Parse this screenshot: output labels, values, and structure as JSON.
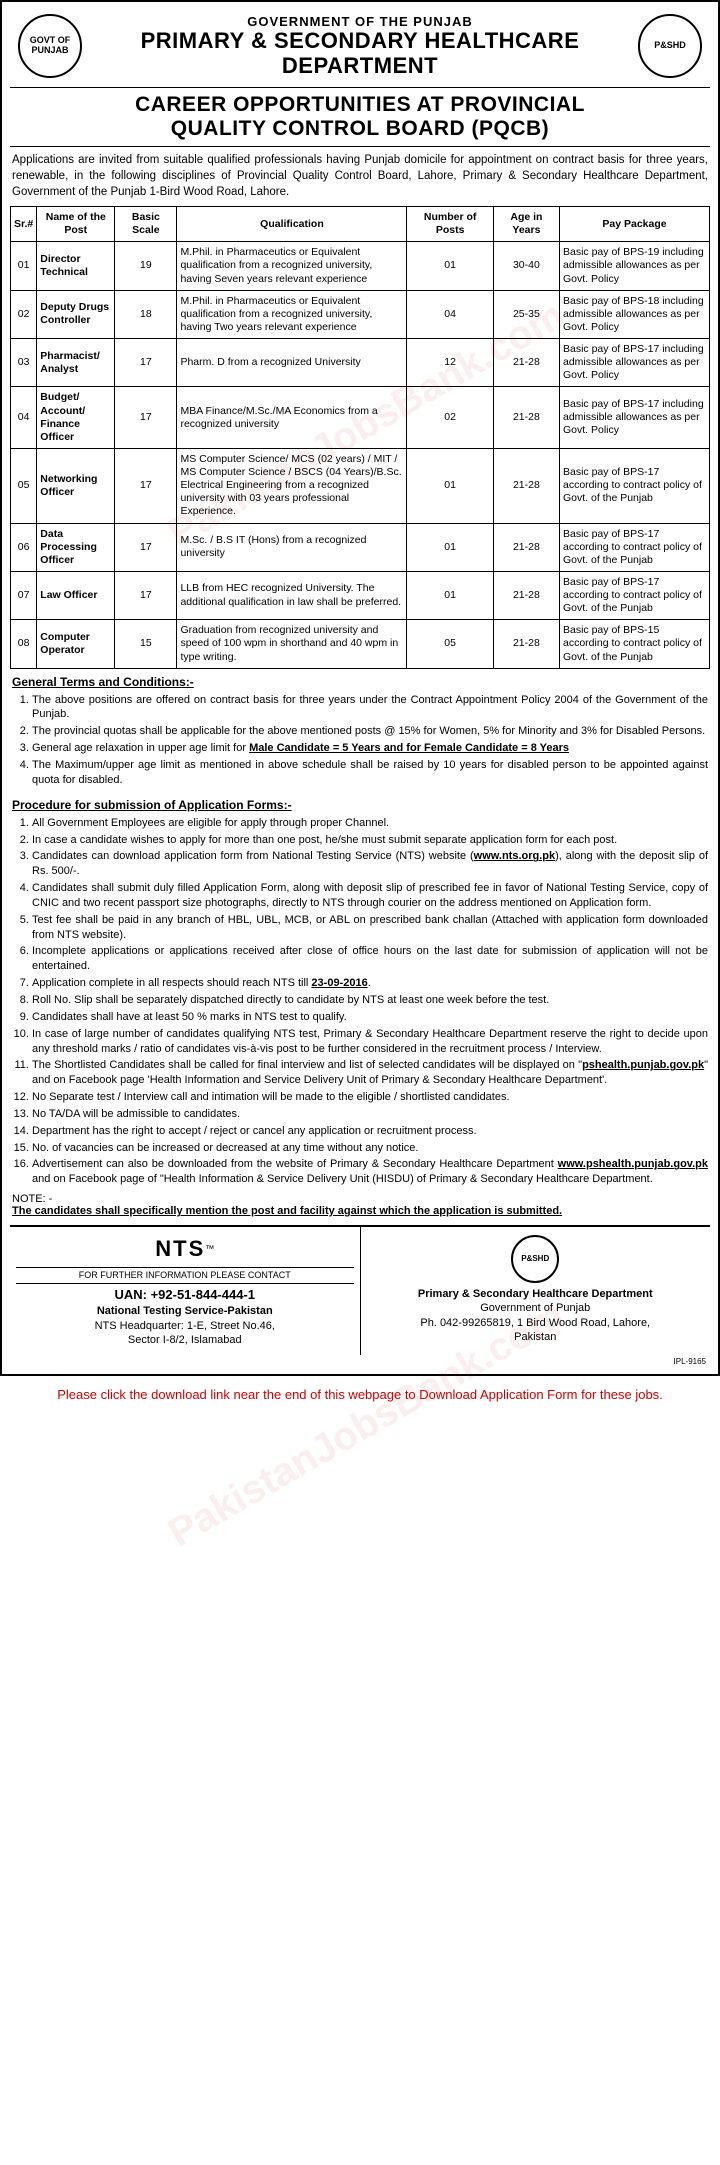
{
  "header": {
    "gov_line": "GOVERNMENT OF THE PUNJAB",
    "dept_line1": "PRIMARY & SECONDARY HEALTHCARE",
    "dept_line2": "DEPARTMENT",
    "career_line1": "CAREER OPPORTUNITIES AT PROVINCIAL",
    "career_line2": "QUALITY CONTROL BOARD (PQCB)",
    "logo_left_text": "GOVT OF PUNJAB",
    "logo_right_text": "P&SHD"
  },
  "intro": "Applications are invited from suitable qualified professionals having Punjab domicile for appointment on contract basis for three years, renewable, in the following disciplines of Provincial Quality Control Board, Lahore, Primary & Secondary Healthcare Department, Government of the Punjab 1-Bird Wood Road, Lahore.",
  "table": {
    "headers": {
      "sr": "Sr.#",
      "name": "Name of the Post",
      "scale": "Basic Scale",
      "qual": "Qualification",
      "posts": "Number of Posts",
      "age": "Age in Years",
      "pay": "Pay Package"
    },
    "rows": [
      {
        "sr": "01",
        "name": "Director Technical",
        "scale": "19",
        "qual": "M.Phil. in Pharmaceutics or Equivalent qualification from a recognized university, having Seven years relevant experience",
        "posts": "01",
        "age": "30-40",
        "pay": "Basic pay of BPS-19 including admissible allowances as per Govt. Policy"
      },
      {
        "sr": "02",
        "name": "Deputy Drugs Controller",
        "scale": "18",
        "qual": "M.Phil. in Pharmaceutics or Equivalent qualification from a recognized university, having Two years relevant experience",
        "posts": "04",
        "age": "25-35",
        "pay": "Basic pay of BPS-18 including admissible allowances as per Govt. Policy"
      },
      {
        "sr": "03",
        "name": "Pharmacist/ Analyst",
        "scale": "17",
        "qual": "Pharm. D from a recognized University",
        "posts": "12",
        "age": "21-28",
        "pay": "Basic pay of BPS-17 including admissible allowances as per Govt. Policy"
      },
      {
        "sr": "04",
        "name": "Budget/ Account/ Finance Officer",
        "scale": "17",
        "qual": "MBA Finance/M.Sc./MA Economics from a recognized university",
        "posts": "02",
        "age": "21-28",
        "pay": "Basic pay of BPS-17 including admissible allowances as per Govt. Policy"
      },
      {
        "sr": "05",
        "name": "Networking Officer",
        "scale": "17",
        "qual": "MS Computer Science/ MCS (02 years) / MIT / MS Computer Science / BSCS (04 Years)/B.Sc. Electrical Engineering from a recognized university with 03 years professional Experience.",
        "posts": "01",
        "age": "21-28",
        "pay": "Basic pay of BPS-17 according to contract policy of Govt. of the Punjab"
      },
      {
        "sr": "06",
        "name": "Data Processing Officer",
        "scale": "17",
        "qual": "M.Sc. / B.S IT (Hons) from a recognized university",
        "posts": "01",
        "age": "21-28",
        "pay": "Basic pay of BPS-17 according to contract policy of Govt. of the Punjab"
      },
      {
        "sr": "07",
        "name": "Law Officer",
        "scale": "17",
        "qual": "LLB from HEC recognized University. The additional qualification in law shall be preferred.",
        "posts": "01",
        "age": "21-28",
        "pay": "Basic pay of BPS-17 according to contract policy of Govt. of the Punjab"
      },
      {
        "sr": "08",
        "name": "Computer Operator",
        "scale": "15",
        "qual": "Graduation from recognized university and speed of 100 wpm in shorthand and 40 wpm in type writing.",
        "posts": "05",
        "age": "21-28",
        "pay": "Basic pay of BPS-15 according to contract policy of Govt. of the Punjab"
      }
    ]
  },
  "terms_header": "General Terms and Conditions:-",
  "terms": [
    "The above positions are offered on contract basis for three years under the Contract Appointment Policy 2004 of the Government of the Punjab.",
    "The provincial quotas shall be applicable for the above mentioned posts @ 15% for Women, 5% for Minority and 3% for Disabled Persons.",
    "General age relaxation in upper age limit for Male Candidate = 5 Years and for Female Candidate = 8 Years",
    "The Maximum/upper age limit as mentioned in above schedule shall be raised by 10 years for disabled person to be appointed against quota for disabled."
  ],
  "procedure_header": "Procedure for submission of Application Forms:-",
  "procedure": [
    "All Government Employees are eligible for apply through proper Channel.",
    "In case a candidate wishes to apply for more than one post, he/she must submit separate application form for each post.",
    "Candidates can download application form from National Testing Service (NTS) website (www.nts.org.pk), along with the deposit slip of Rs. 500/-.",
    "Candidates shall submit duly filled Application Form, along with deposit slip of prescribed fee in favor of National Testing Service, copy of CNIC and two recent passport size photographs, directly to NTS through courier on the address mentioned on Application form.",
    "Test fee shall be paid in any branch of HBL, UBL, MCB, or ABL on prescribed bank challan (Attached with application form downloaded from NTS website).",
    "Incomplete applications or applications received after close of office hours on the last date for submission of application will not be entertained.",
    "Application complete in all respects should reach NTS till 23-09-2016.",
    "Roll No. Slip shall be separately dispatched directly to candidate by NTS at least one week before the test.",
    "Candidates shall have at least 50 % marks in NTS test to qualify.",
    "In case of large number of candidates qualifying NTS test, Primary & Secondary Healthcare Department reserve the right to decide upon any threshold marks / ratio of candidates vis-à-vis post to be further considered in the recruitment process / Interview.",
    "The Shortlisted Candidates shall be called for final interview and list of selected candidates will be displayed on \"pshealth.punjab.gov.pk\" and on Facebook page 'Health Information and Service Delivery Unit of Primary & Secondary Healthcare Department'.",
    "No Separate test / Interview call and intimation will be made to the eligible / shortlisted candidates.",
    "No TA/DA will be admissible to candidates.",
    "Department has the right to accept / reject or cancel any application or recruitment process.",
    "No. of vacancies can be increased or decreased at any time without any notice.",
    "Advertisement can also be downloaded from the website of Primary & Secondary Healthcare Department www.pshealth.punjab.gov.pk and on Facebook page of \"Health Information & Service Delivery Unit (HISDU) of Primary & Secondary Healthcare Department."
  ],
  "note_label": "NOTE: -",
  "note_text": "The candidates shall specifically mention the post and facility against which the application is submitted.",
  "footer": {
    "nts": {
      "logo": "NTS",
      "tm": "™",
      "contact_label": "FOR FURTHER INFORMATION PLEASE CONTACT",
      "uan": "UAN: +92-51-844-444-1",
      "org": "National Testing Service-Pakistan",
      "addr1": "NTS Headquarter: 1-E, Street No.46,",
      "addr2": "Sector I-8/2, Islamabad"
    },
    "dept": {
      "name": "Primary & Secondary Healthcare Department",
      "gov": "Government of Punjab",
      "phone": "Ph. 042-99265819, 1 Bird Wood Road, Lahore,",
      "country": "Pakistan",
      "logo_text": "P&SHD"
    },
    "ipl": "IPL-9165"
  },
  "download_note": "Please click the download link near the end of this webpage to Download Application Form for these jobs.",
  "watermark": "PakistanJobsBank.com",
  "colors": {
    "download_note": "#cc0000",
    "border": "#000000",
    "text": "#000000",
    "background": "#ffffff"
  }
}
